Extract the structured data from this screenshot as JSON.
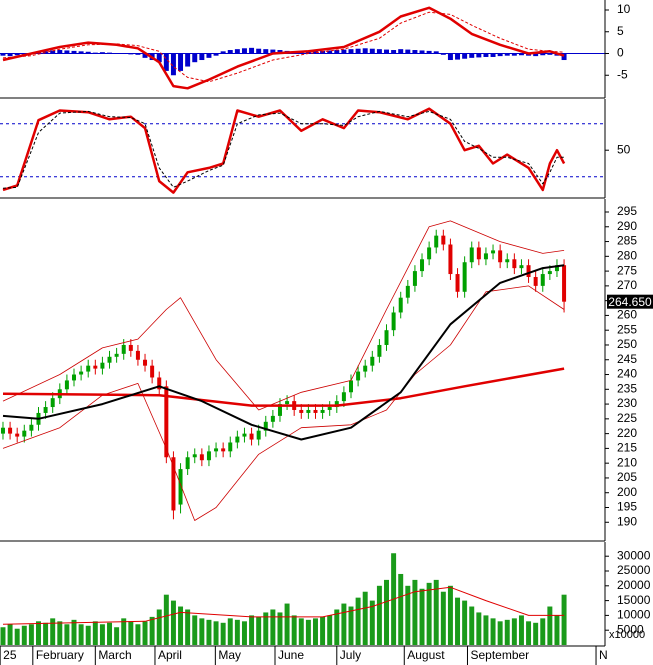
{
  "chart_data": [
    {
      "type": "bar",
      "xlim": [
        -0.42,
        84.2
      ],
      "ylim": [
        -10,
        12.3
      ],
      "yticks": [
        10,
        5,
        0,
        -5
      ],
      "baseline": 0,
      "baseline_color": "#0000cc",
      "color": "#0000cc",
      "values": [
        -0.5,
        -0.6,
        -0.4,
        -0.2,
        0,
        0.3,
        0.5,
        0.7,
        0.8,
        0.7,
        0.6,
        0.5,
        0.4,
        0.2,
        0.3,
        0.2,
        0.1,
        0,
        -0.2,
        -0.3,
        -1,
        -1.5,
        -2,
        -4,
        -5,
        -4,
        -3,
        -2,
        -1.5,
        -1,
        -0.5,
        0.5,
        0.8,
        1,
        1.2,
        1.3,
        1.1,
        1,
        0.9,
        0.8,
        0.6,
        0.5,
        0.3,
        0.4,
        0.5,
        0.6,
        0.7,
        0.8,
        0.9,
        1,
        1.1,
        1.2,
        1.1,
        1,
        0.9,
        0.8,
        1,
        0.9,
        0.8,
        0.7,
        0.6,
        0.5,
        -0.3,
        -1.5,
        -1.4,
        -1.2,
        -1,
        -0.9,
        -0.8,
        -0.8,
        -0.6,
        -0.5,
        -0.5,
        -0.4,
        -0.5,
        -0.6,
        -0.4,
        -0.3,
        -0.5,
        -1.5
      ],
      "series": [
        {
          "color": "#e00000",
          "width": 2.5,
          "dash": false,
          "x": [
            0,
            4,
            8,
            12,
            16,
            19,
            22,
            24,
            26,
            29,
            33,
            38,
            43,
            48,
            53,
            56,
            60,
            63,
            66,
            70,
            74,
            77,
            79
          ],
          "values": [
            -1.5,
            0,
            1.5,
            2.5,
            2,
            1.2,
            -2,
            -7.5,
            -8,
            -6,
            -3,
            0,
            0.5,
            1.5,
            5,
            8.5,
            10.5,
            8,
            4.5,
            2,
            0,
            0.5,
            -0.5
          ]
        },
        {
          "color": "#e00000",
          "width": 1,
          "dash": true,
          "x": [
            0,
            4,
            8,
            12,
            16,
            19,
            22,
            24,
            26,
            29,
            33,
            38,
            43,
            48,
            53,
            56,
            60,
            63,
            66,
            70,
            74,
            77,
            79
          ],
          "values": [
            -1,
            -0.5,
            1,
            2,
            2.2,
            1.8,
            0.5,
            -3,
            -5.5,
            -6.5,
            -4.5,
            -1.5,
            0,
            1,
            3.5,
            7,
            9.5,
            9,
            6.5,
            3.5,
            1,
            0.5,
            0.3
          ]
        }
      ]
    },
    {
      "type": "line",
      "xlim": [
        -0.42,
        84.2
      ],
      "ylim": [
        -3,
        108
      ],
      "yticks": [
        50
      ],
      "levels": [
        80,
        20
      ],
      "level_color": "#0000cc",
      "series": [
        {
          "color": "#e00000",
          "width": 2.5,
          "dash": false,
          "x": [
            0,
            2,
            5,
            8,
            12,
            15,
            18,
            20,
            22,
            24,
            26,
            29,
            31,
            33,
            36,
            39,
            42,
            45,
            48,
            50,
            53,
            57,
            60,
            63,
            65,
            67,
            69,
            71,
            74,
            76,
            77,
            78,
            79
          ],
          "values": [
            5,
            10,
            84,
            95,
            93,
            85,
            88,
            75,
            15,
            2,
            25,
            30,
            35,
            95,
            88,
            95,
            72,
            85,
            75,
            95,
            93,
            85,
            97,
            80,
            50,
            55,
            35,
            45,
            30,
            5,
            35,
            50,
            35
          ]
        },
        {
          "color": "#000000",
          "width": 1,
          "dash": true,
          "x": [
            0,
            2,
            5,
            8,
            12,
            15,
            18,
            20,
            22,
            24,
            26,
            29,
            31,
            33,
            36,
            39,
            42,
            45,
            48,
            50,
            53,
            57,
            60,
            63,
            65,
            67,
            69,
            71,
            74,
            76,
            77,
            78,
            79
          ],
          "values": [
            7,
            8,
            70,
            92,
            94,
            88,
            87,
            80,
            30,
            8,
            15,
            27,
            33,
            80,
            90,
            92,
            80,
            80,
            78,
            88,
            94,
            88,
            94,
            85,
            60,
            52,
            42,
            42,
            35,
            12,
            25,
            42,
            42
          ]
        }
      ]
    },
    {
      "type": "candlestick",
      "xlim": [
        -0.42,
        84.2
      ],
      "ylim": [
        184,
        299.4
      ],
      "yticks": [
        295,
        290,
        285,
        280,
        275,
        270,
        265,
        260,
        255,
        250,
        245,
        240,
        235,
        230,
        225,
        220,
        215,
        210,
        205,
        200,
        195,
        190
      ],
      "up_color": "#00a000",
      "down_color": "#e00000",
      "open": [
        220,
        222,
        220,
        219,
        221,
        223,
        227,
        229,
        232,
        235,
        238,
        240,
        241,
        243,
        242,
        244,
        246,
        247,
        250,
        248,
        245,
        243,
        239,
        236,
        212,
        196,
        208,
        212,
        213,
        211,
        214,
        215,
        214,
        217,
        219,
        220,
        218,
        221,
        224,
        226,
        230,
        231,
        228,
        227,
        228,
        227,
        228,
        229,
        231,
        234,
        238,
        241,
        243,
        246,
        250,
        255,
        261,
        266,
        270,
        275,
        279,
        283,
        287,
        284,
        274,
        268,
        278,
        283,
        279,
        281,
        282,
        278,
        279,
        276,
        277,
        273,
        270,
        274,
        275,
        277
      ],
      "high": [
        224,
        224,
        222,
        223,
        225,
        229,
        231,
        234,
        237,
        240,
        242,
        243,
        245,
        245,
        246,
        248,
        249,
        252,
        252,
        250,
        247,
        245,
        241,
        238,
        214,
        210,
        214,
        215,
        215,
        216,
        217,
        217,
        219,
        221,
        222,
        222,
        223,
        226,
        228,
        232,
        233,
        233,
        230,
        230,
        230,
        230,
        231,
        233,
        236,
        240,
        243,
        245,
        248,
        252,
        257,
        263,
        268,
        272,
        277,
        281,
        285,
        289,
        289,
        286,
        276,
        280,
        285,
        285,
        283,
        284,
        284,
        281,
        281,
        279,
        279,
        275,
        276,
        277,
        279,
        279
      ],
      "low": [
        218,
        218,
        217,
        217,
        219,
        221,
        225,
        227,
        230,
        233,
        236,
        238,
        239,
        240,
        240,
        242,
        244,
        245,
        246,
        243,
        241,
        237,
        233,
        210,
        191,
        193,
        206,
        210,
        209,
        209,
        212,
        212,
        212,
        215,
        217,
        216,
        216,
        219,
        222,
        224,
        228,
        226,
        225,
        225,
        225,
        225,
        226,
        227,
        229,
        232,
        236,
        239,
        241,
        244,
        248,
        253,
        259,
        264,
        268,
        273,
        277,
        281,
        282,
        272,
        266,
        266,
        276,
        277,
        277,
        279,
        276,
        276,
        274,
        274,
        271,
        268,
        268,
        272,
        273,
        261
      ],
      "close": [
        222,
        220,
        219,
        221,
        223,
        227,
        229,
        232,
        235,
        238,
        240,
        241,
        243,
        242,
        244,
        246,
        247,
        250,
        248,
        245,
        243,
        239,
        235,
        212,
        194,
        208,
        212,
        213,
        211,
        214,
        215,
        214,
        217,
        219,
        220,
        218,
        221,
        224,
        226,
        230,
        231,
        228,
        227,
        228,
        227,
        228,
        229,
        231,
        234,
        238,
        241,
        243,
        246,
        250,
        255,
        261,
        266,
        270,
        275,
        279,
        283,
        287,
        284,
        274,
        268,
        278,
        283,
        279,
        281,
        282,
        278,
        279,
        276,
        277,
        273,
        270,
        274,
        275,
        277,
        264.65
      ],
      "last_price": {
        "value": 264.65,
        "label": "264.650"
      },
      "series": [
        {
          "color": "#cc0000",
          "width": 0.8,
          "dash": false,
          "x": [
            0,
            8,
            14,
            19,
            23,
            25,
            30,
            36,
            42,
            49,
            54,
            60,
            63,
            70,
            76,
            79
          ],
          "values": [
            231,
            240,
            249,
            252,
            262,
            266,
            245,
            228,
            234,
            238,
            262,
            290,
            292,
            285,
            281,
            282
          ]
        },
        {
          "color": "#cc0000",
          "width": 0.8,
          "dash": false,
          "x": [
            0,
            8,
            14,
            19,
            23,
            27,
            30,
            36,
            42,
            49,
            54,
            58,
            63,
            68,
            74,
            79
          ],
          "values": [
            215,
            222,
            233,
            237,
            215,
            190.6,
            195,
            213,
            222,
            223,
            228,
            240,
            250,
            268,
            270,
            262
          ]
        },
        {
          "color": "#e00000",
          "width": 2.5,
          "dash": false,
          "x": [
            0,
            22,
            35,
            47,
            56,
            65,
            79
          ],
          "values": [
            233.5,
            233,
            229.5,
            229.5,
            232,
            236,
            242
          ]
        },
        {
          "color": "#000000",
          "width": 2,
          "dash": false,
          "x": [
            0,
            5,
            14,
            22,
            28,
            35,
            42,
            49,
            56,
            63,
            70,
            76,
            79
          ],
          "values": [
            226,
            225,
            230,
            236,
            231,
            223,
            218,
            222,
            234,
            257,
            271,
            276,
            277
          ]
        }
      ]
    },
    {
      "type": "bar",
      "xlim": [
        -0.42,
        84.2
      ],
      "ylim": [
        0,
        34800
      ],
      "yticks": [
        30000,
        25000,
        20000,
        15000,
        10000,
        5000
      ],
      "unit_label": "x10000",
      "color": "#1a9a1a",
      "values": [
        6000,
        7000,
        5500,
        6500,
        7000,
        8000,
        7500,
        9000,
        8000,
        7000,
        8500,
        7000,
        6500,
        8000,
        7000,
        7500,
        6000,
        9000,
        8000,
        7000,
        8000,
        9500,
        12000,
        17000,
        15000,
        13000,
        12000,
        10000,
        9000,
        8500,
        8000,
        7500,
        9000,
        8500,
        8000,
        10000,
        9500,
        11000,
        12000,
        11000,
        14000,
        10000,
        9000,
        8500,
        9000,
        9500,
        10000,
        12000,
        14000,
        13000,
        16000,
        18000,
        15000,
        20000,
        22000,
        31000,
        24000,
        20000,
        22000,
        19000,
        21000,
        22000,
        18000,
        20000,
        16000,
        15000,
        13000,
        11000,
        10000,
        9000,
        8000,
        8500,
        9000,
        10000,
        8000,
        7500,
        9000,
        13000,
        10000,
        17000
      ],
      "series": [
        {
          "color": "#e00000",
          "width": 1,
          "dash": false,
          "x": [
            0,
            10,
            20,
            25,
            35,
            45,
            52,
            58,
            63,
            68,
            74,
            79
          ],
          "values": [
            7000,
            7500,
            8000,
            11000,
            9500,
            9500,
            13000,
            18000,
            19500,
            15000,
            10000,
            10000
          ]
        }
      ],
      "xticks": [
        {
          "value": -0.4,
          "label": "25"
        },
        {
          "value": 4.2,
          "label": "February"
        },
        {
          "value": 13,
          "label": "March"
        },
        {
          "value": 21.4,
          "label": "April"
        },
        {
          "value": 29.9,
          "label": "May"
        },
        {
          "value": 38.3,
          "label": "June"
        },
        {
          "value": 47,
          "label": "July"
        },
        {
          "value": 56.5,
          "label": "August"
        },
        {
          "value": 65.4,
          "label": "September"
        },
        {
          "value": 83.5,
          "label": "N"
        }
      ]
    }
  ]
}
